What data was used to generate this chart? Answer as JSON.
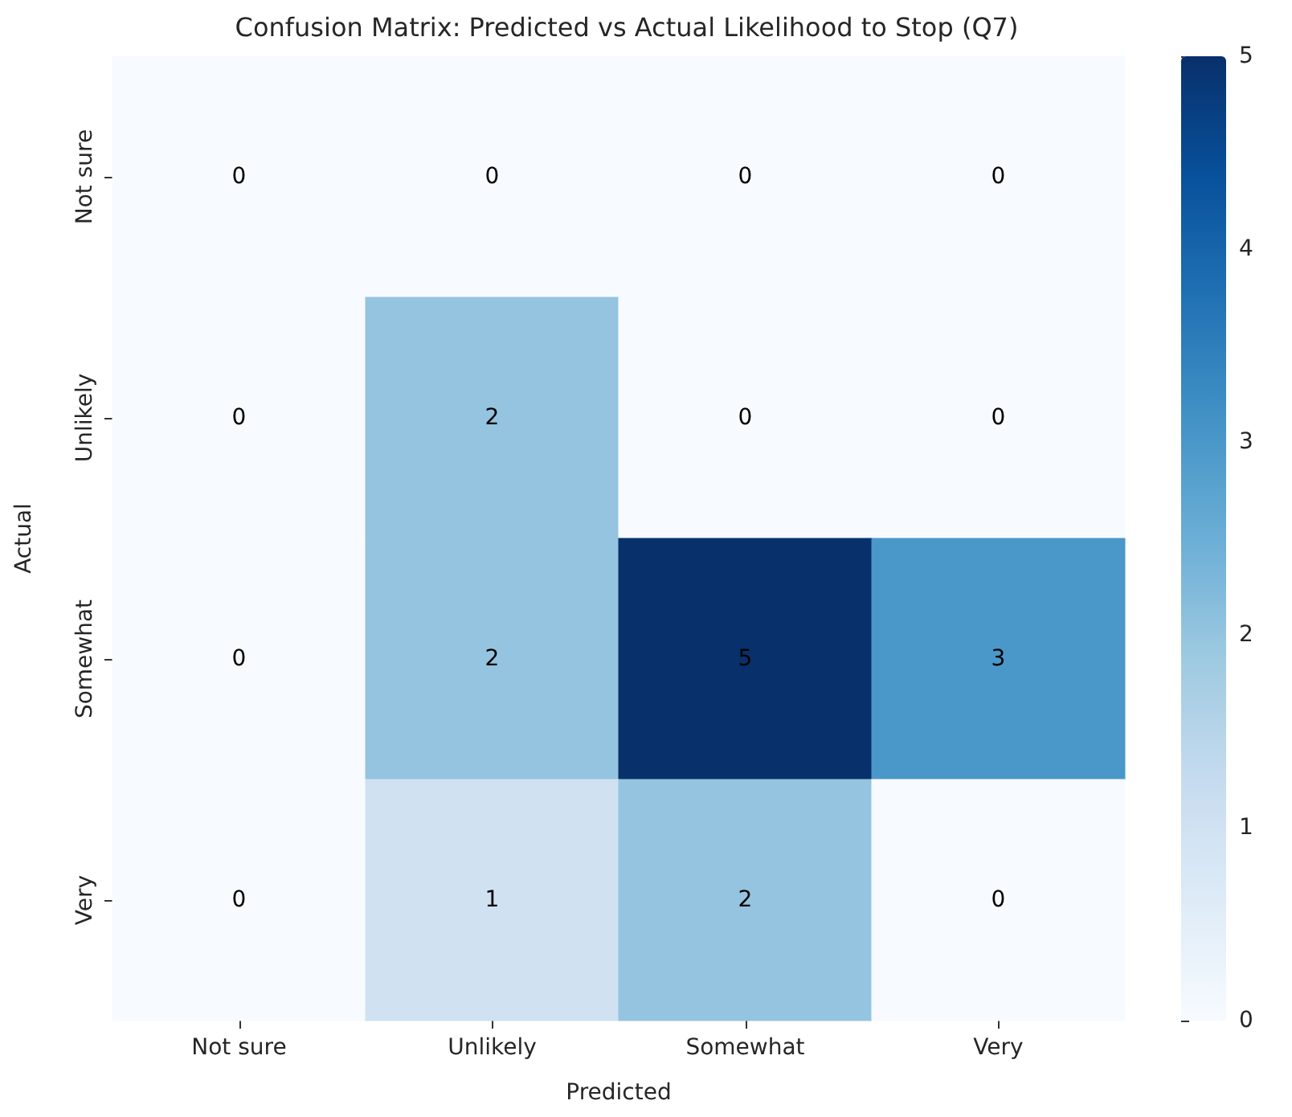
{
  "chart_data": {
    "type": "heatmap",
    "title": "Confusion Matrix: Predicted vs Actual Likelihood to Stop (Q7)",
    "xlabel": "Predicted",
    "ylabel": "Actual",
    "categories": [
      "Not sure",
      "Unlikely",
      "Somewhat",
      "Very"
    ],
    "y_categories": [
      "Not sure",
      "Unlikely",
      "Somewhat",
      "Very"
    ],
    "cells": [
      [
        0,
        0,
        0,
        0
      ],
      [
        0,
        2,
        0,
        0
      ],
      [
        0,
        2,
        5,
        3
      ],
      [
        0,
        1,
        2,
        0
      ]
    ],
    "data_labels": true,
    "clim": [
      0,
      5
    ],
    "cticks": [
      0,
      1,
      2,
      3,
      4,
      5
    ]
  }
}
